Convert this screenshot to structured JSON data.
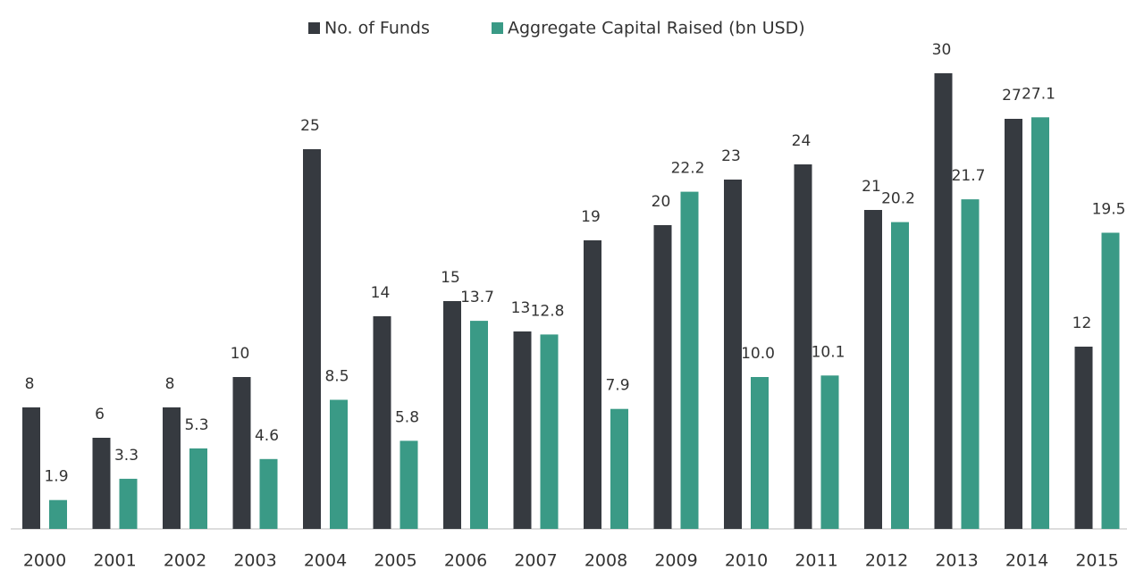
{
  "chart_data": {
    "type": "bar",
    "categories": [
      "2000",
      "2001",
      "2002",
      "2003",
      "2004",
      "2005",
      "2006",
      "2007",
      "2008",
      "2009",
      "2010",
      "2011",
      "2012",
      "2013",
      "2014",
      "2015"
    ],
    "series": [
      {
        "name": "No. of Funds",
        "color": "#363a40",
        "values": [
          8,
          6,
          8,
          10,
          25,
          14,
          15,
          13,
          19,
          20,
          23,
          24,
          21,
          30,
          27,
          12
        ]
      },
      {
        "name": "Aggregate Capital Raised (bn USD)",
        "color": "#3a9a86",
        "values": [
          1.9,
          3.3,
          5.3,
          4.6,
          8.5,
          5.8,
          13.7,
          12.8,
          7.9,
          22.2,
          10.0,
          10.1,
          20.2,
          21.7,
          27.1,
          19.5
        ],
        "value_labels": [
          "1.9",
          "3.3",
          "5.3",
          "4.6",
          "8.5",
          "5.8",
          "13.7",
          "12.8",
          "7.9",
          "22.2",
          "10.0",
          "10.1",
          "20.2",
          "21.7",
          "27.1",
          "19.5"
        ]
      }
    ],
    "ylim": [
      0,
      30
    ],
    "legend": "top"
  }
}
